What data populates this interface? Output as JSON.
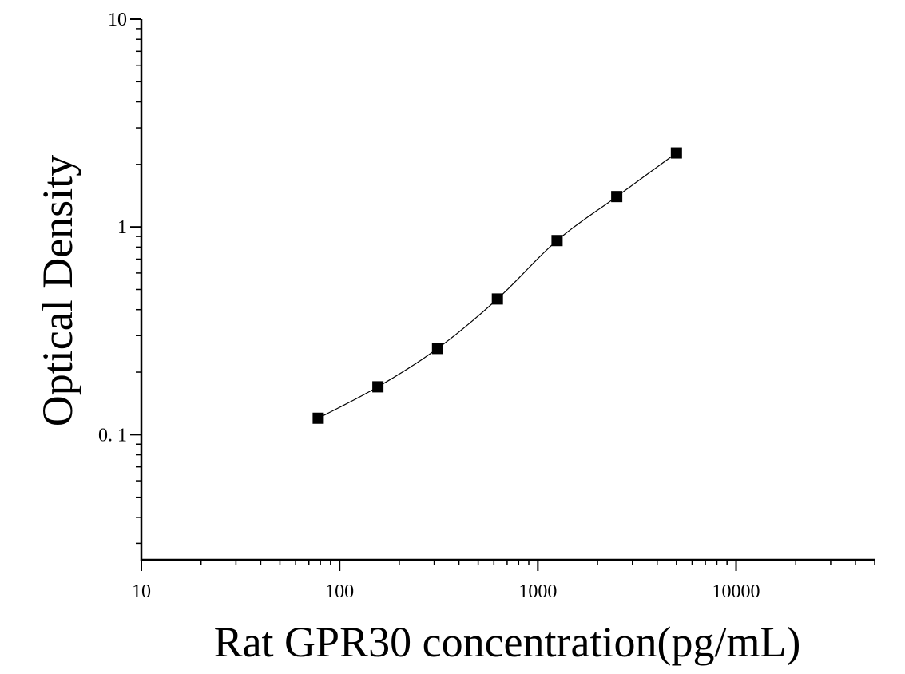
{
  "chart_data": {
    "type": "scatter",
    "title": "",
    "xlabel": "Rat GPR30 concentration(pg/mL)",
    "ylabel": "Optical Density",
    "x_scale": "log",
    "y_scale": "log",
    "xlim": [
      10,
      50000
    ],
    "ylim": [
      0.025,
      10
    ],
    "x_ticks": [
      {
        "value": 10,
        "label": "10"
      },
      {
        "value": 100,
        "label": "100"
      },
      {
        "value": 1000,
        "label": "1000"
      },
      {
        "value": 10000,
        "label": "10000"
      }
    ],
    "y_ticks": [
      {
        "value": 0.1,
        "label": "0. 1"
      },
      {
        "value": 1,
        "label": "1"
      },
      {
        "value": 10,
        "label": "10"
      }
    ],
    "grid": false,
    "legend": "none",
    "marker": "square",
    "marker_color": "#000000",
    "fit_curve": true,
    "points": [
      {
        "x": 78,
        "y": 0.12
      },
      {
        "x": 156,
        "y": 0.17
      },
      {
        "x": 312,
        "y": 0.26
      },
      {
        "x": 625,
        "y": 0.45
      },
      {
        "x": 1250,
        "y": 0.86
      },
      {
        "x": 2500,
        "y": 1.4
      },
      {
        "x": 5000,
        "y": 2.27
      }
    ]
  }
}
